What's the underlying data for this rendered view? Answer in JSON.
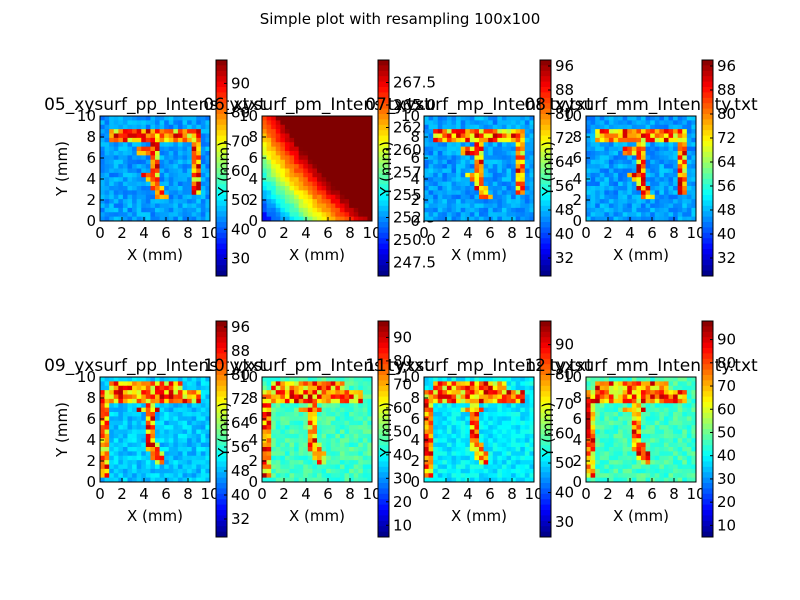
{
  "figure": {
    "suptitle": "Simple plot with resampling 100x100"
  },
  "chart_data": [
    {
      "type": "heatmap",
      "title": "05_xysurf_pp_Intensity.txt",
      "xlabel": "X (mm)",
      "ylabel": "Y (mm)",
      "xlim": [
        0,
        10
      ],
      "ylim": [
        0,
        10
      ],
      "xticks": [
        "0",
        "2",
        "4",
        "6",
        "8",
        "10"
      ],
      "yticks": [
        "0",
        "2",
        "4",
        "6",
        "8",
        "10"
      ],
      "colormap": "jet",
      "colorbar": {
        "range": [
          24,
          98
        ],
        "ticks": [
          "30",
          "40",
          "50",
          "60",
          "70",
          "80",
          "90"
        ]
      }
    },
    {
      "type": "heatmap",
      "title": "06_xysurf_pm_Intensity.txt",
      "xlabel": "X (mm)",
      "ylabel": "Y (mm)",
      "xlim": [
        0,
        10
      ],
      "ylim": [
        0,
        10
      ],
      "xticks": [
        "0",
        "2",
        "4",
        "6",
        "8",
        "10"
      ],
      "yticks": [
        "0",
        "2",
        "4",
        "6",
        "8",
        "10"
      ],
      "colormap": "jet",
      "colorbar": {
        "range": [
          246,
          270
        ],
        "ticks": [
          "247.5",
          "250.0",
          "252.5",
          "255.0",
          "257.5",
          "260.0",
          "262.5",
          "265.0",
          "267.5"
        ]
      }
    },
    {
      "type": "heatmap",
      "title": "07_xysurf_mp_Intensity.txt",
      "xlabel": "X (mm)",
      "ylabel": "Y (mm)",
      "xlim": [
        0,
        10
      ],
      "ylim": [
        0,
        10
      ],
      "xticks": [
        "0",
        "2",
        "4",
        "6",
        "8",
        "10"
      ],
      "yticks": [
        "0",
        "2",
        "4",
        "6",
        "8",
        "10"
      ],
      "colormap": "jet",
      "colorbar": {
        "range": [
          26,
          98
        ],
        "ticks": [
          "32",
          "40",
          "48",
          "56",
          "64",
          "72",
          "80",
          "88",
          "96"
        ]
      }
    },
    {
      "type": "heatmap",
      "title": "08_xysurf_mm_Intensity.txt",
      "xlabel": "X (mm)",
      "ylabel": "Y (mm)",
      "xlim": [
        0,
        10
      ],
      "ylim": [
        0,
        10
      ],
      "xticks": [
        "0",
        "2",
        "4",
        "6",
        "8",
        "10"
      ],
      "yticks": [
        "0",
        "2",
        "4",
        "6",
        "8",
        "10"
      ],
      "colormap": "jet",
      "colorbar": {
        "range": [
          26,
          98
        ],
        "ticks": [
          "32",
          "40",
          "48",
          "56",
          "64",
          "72",
          "80",
          "88",
          "96"
        ]
      }
    },
    {
      "type": "heatmap",
      "title": "09_yxsurf_pp_Intensity.txt",
      "xlabel": "X (mm)",
      "ylabel": "Y (mm)",
      "xlim": [
        0,
        10
      ],
      "ylim": [
        0,
        10
      ],
      "xticks": [
        "0",
        "2",
        "4",
        "6",
        "8",
        "10"
      ],
      "yticks": [
        "0",
        "2",
        "4",
        "6",
        "8",
        "10"
      ],
      "colormap": "jet",
      "colorbar": {
        "range": [
          26,
          98
        ],
        "ticks": [
          "32",
          "40",
          "48",
          "56",
          "64",
          "72",
          "80",
          "88",
          "96"
        ]
      }
    },
    {
      "type": "heatmap",
      "title": "10_yxsurf_pm_Intensity.txt",
      "xlabel": "X (mm)",
      "ylabel": "Y (mm)",
      "xlim": [
        0,
        10
      ],
      "ylim": [
        0,
        10
      ],
      "xticks": [
        "0",
        "2",
        "4",
        "6",
        "8",
        "10"
      ],
      "yticks": [
        "0",
        "2",
        "4",
        "6",
        "8",
        "10"
      ],
      "colormap": "jet",
      "colorbar": {
        "range": [
          5,
          97
        ],
        "ticks": [
          "10",
          "20",
          "30",
          "40",
          "50",
          "60",
          "70",
          "80",
          "90"
        ]
      }
    },
    {
      "type": "heatmap",
      "title": "11_yxsurf_mp_Intensity.txt",
      "xlabel": "X (mm)",
      "ylabel": "Y (mm)",
      "xlim": [
        0,
        10
      ],
      "ylim": [
        0,
        10
      ],
      "xticks": [
        "0",
        "2",
        "4",
        "6",
        "8",
        "10"
      ],
      "yticks": [
        "0",
        "2",
        "4",
        "6",
        "8",
        "10"
      ],
      "colormap": "jet",
      "colorbar": {
        "range": [
          25,
          98
        ],
        "ticks": [
          "30",
          "40",
          "50",
          "60",
          "70",
          "80",
          "90"
        ]
      }
    },
    {
      "type": "heatmap",
      "title": "12_yxsurf_mm_Intensity.txt",
      "xlabel": "X (mm)",
      "ylabel": "Y (mm)",
      "xlim": [
        0,
        10
      ],
      "ylim": [
        0,
        10
      ],
      "xticks": [
        "0",
        "2",
        "4",
        "6",
        "8",
        "10"
      ],
      "yticks": [
        "0",
        "2",
        "4",
        "6",
        "8",
        "10"
      ],
      "colormap": "jet",
      "colorbar": {
        "range": [
          5,
          98
        ],
        "ticks": [
          "10",
          "20",
          "30",
          "40",
          "50",
          "60",
          "70",
          "80",
          "90"
        ]
      }
    }
  ]
}
